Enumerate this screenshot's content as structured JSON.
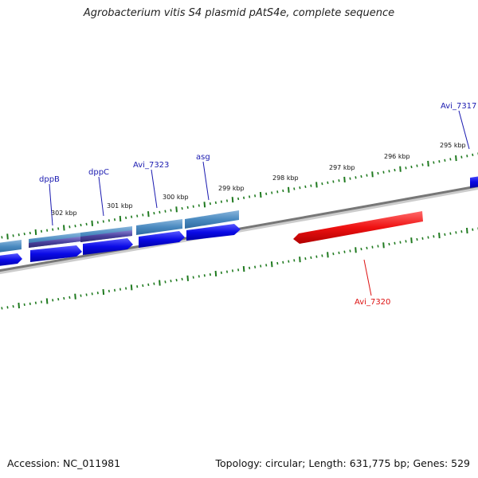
{
  "title": "Agrobacterium vitis S4 plasmid pAtS4e, complete sequence",
  "footer": {
    "accession": "Accession: NC_011981",
    "stats": "Topology: circular; Length: 631,775 bp; Genes: 529"
  },
  "colors": {
    "forward_gene_label": "#1a1ab0",
    "reverse_gene_label": "#dd1111",
    "gene_forward": "#0a0ae6",
    "gene_reverse": "#ee1111",
    "gene_cds_light": "#4a8ac0",
    "gene_cds_purple": "#4a3a9a",
    "tick": "#1f7a1f",
    "backbone": "#888888"
  },
  "ruler": {
    "labels": [
      "302 kbp",
      "301 kbp",
      "300 kbp",
      "299 kbp",
      "298 kbp",
      "297 kbp",
      "296 kbp",
      "295 kbp"
    ]
  },
  "genes": {
    "forward_labels": [
      "dppB",
      "dppC",
      "Avi_7323",
      "asg",
      "Avi_7317"
    ],
    "reverse_labels": [
      "Avi_7320"
    ]
  }
}
